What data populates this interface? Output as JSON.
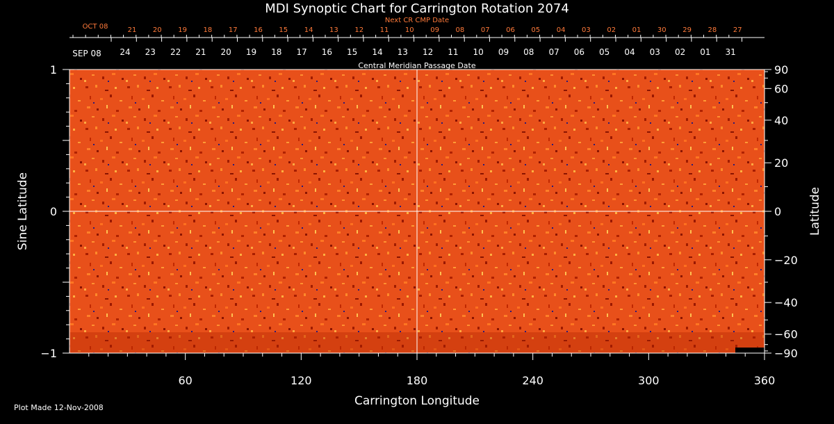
{
  "chart_data": {
    "type": "heatmap",
    "title": "MDI Synoptic Chart for Carrington Rotation 2074",
    "xlabel": "Carrington Longitude",
    "ylabel_left": "Sine Latitude",
    "ylabel_right": "Latitude",
    "xlim": [
      0,
      360
    ],
    "ylim": [
      -1,
      1
    ],
    "x_ticks": [
      60,
      120,
      180,
      240,
      300,
      360
    ],
    "y_ticks_left": [
      {
        "value": 1,
        "label": "1"
      },
      {
        "value": 0,
        "label": "0"
      },
      {
        "value": -1,
        "label": "−1"
      }
    ],
    "y_ticks_right": [
      {
        "deg": 90,
        "label": "90"
      },
      {
        "deg": 60,
        "label": "60"
      },
      {
        "deg": 40,
        "label": "40"
      },
      {
        "deg": 20,
        "label": "20"
      },
      {
        "deg": 0,
        "label": "0"
      },
      {
        "deg": -20,
        "label": "−20"
      },
      {
        "deg": -40,
        "label": "−40"
      },
      {
        "deg": -60,
        "label": "−60"
      },
      {
        "deg": -90,
        "label": "−90"
      }
    ],
    "cmp_axis_title": "Central Meridian Passage Date",
    "cmp_start_label": "SEP 08",
    "cmp_dates": [
      "24",
      "23",
      "22",
      "21",
      "20",
      "19",
      "18",
      "17",
      "16",
      "15",
      "14",
      "13",
      "12",
      "11",
      "10",
      "09",
      "08",
      "07",
      "06",
      "05",
      "04",
      "03",
      "02",
      "01",
      "31"
    ],
    "next_cmp_title": "Next CR CMP Date",
    "next_cmp_start_label": "OCT 08",
    "next_cmp_dates": [
      "21",
      "20",
      "19",
      "18",
      "17",
      "16",
      "15",
      "14",
      "13",
      "12",
      "11",
      "10",
      "09",
      "08",
      "07",
      "06",
      "05",
      "04",
      "03",
      "02",
      "01",
      "30",
      "29",
      "28",
      "27"
    ],
    "grid": "crosshair at longitude 180 and sine latitude 0",
    "colormap": [
      "#7a0a00",
      "#c42a00",
      "#ff5a10",
      "#ff9a30",
      "#ffd070",
      "#1a1a8a"
    ],
    "footer": "Plot Made 12-Nov-2008"
  }
}
